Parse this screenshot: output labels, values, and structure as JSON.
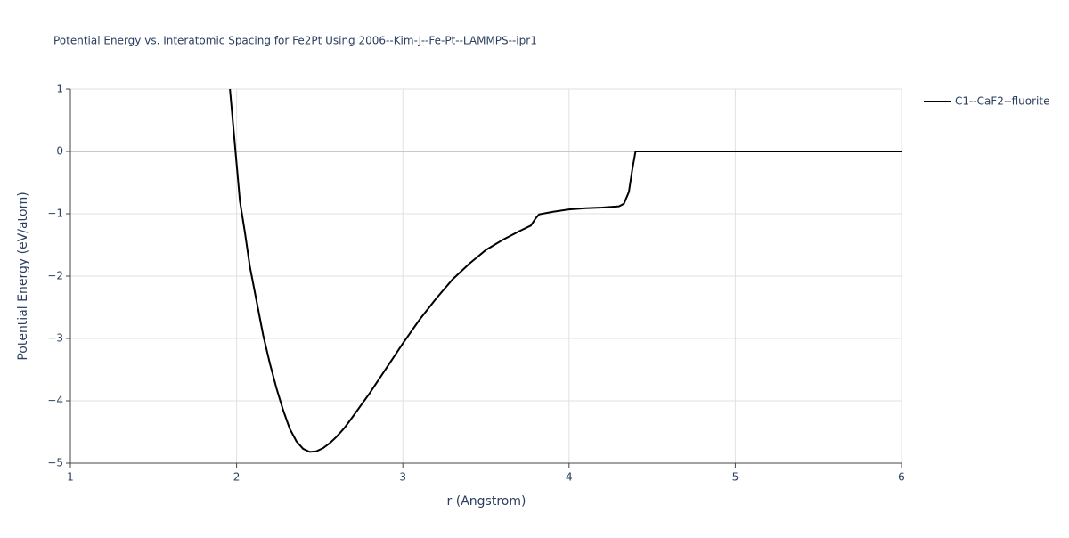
{
  "chart_data": {
    "type": "line",
    "title": "Potential Energy vs. Interatomic Spacing for Fe2Pt Using 2006--Kim-J--Fe-Pt--LAMMPS--ipr1",
    "xlabel": "r (Angstrom)",
    "ylabel": "Potential Energy (eV/atom)",
    "xlim": [
      1,
      6
    ],
    "ylim": [
      -5,
      1
    ],
    "xticks": [
      1,
      2,
      3,
      4,
      5,
      6
    ],
    "yticks": [
      {
        "value": -5,
        "label": "−5"
      },
      {
        "value": -4,
        "label": "−4"
      },
      {
        "value": -3,
        "label": "−3"
      },
      {
        "value": -2,
        "label": "−2"
      },
      {
        "value": -1,
        "label": "−1"
      },
      0,
      1
    ],
    "grid": true,
    "legend": "right",
    "series": [
      {
        "name": "C1--CaF2--fluorite",
        "color": "#000000",
        "x": [
          1.96,
          1.98,
          2.0,
          2.02,
          2.05,
          2.08,
          2.12,
          2.16,
          2.2,
          2.24,
          2.28,
          2.32,
          2.36,
          2.4,
          2.44,
          2.48,
          2.52,
          2.56,
          2.6,
          2.65,
          2.7,
          2.8,
          2.9,
          3.0,
          3.1,
          3.2,
          3.3,
          3.4,
          3.5,
          3.6,
          3.7,
          3.77,
          3.8,
          3.82,
          3.9,
          4.0,
          4.1,
          4.2,
          4.3,
          4.33,
          4.36,
          4.38,
          4.4,
          4.5,
          5.0,
          5.5,
          6.0
        ],
        "values": [
          1.0,
          0.4,
          -0.2,
          -0.8,
          -1.3,
          -1.85,
          -2.4,
          -2.95,
          -3.4,
          -3.8,
          -4.15,
          -4.45,
          -4.65,
          -4.77,
          -4.82,
          -4.81,
          -4.76,
          -4.68,
          -4.58,
          -4.43,
          -4.25,
          -3.88,
          -3.48,
          -3.08,
          -2.7,
          -2.36,
          -2.05,
          -1.8,
          -1.58,
          -1.42,
          -1.28,
          -1.19,
          -1.07,
          -1.01,
          -0.97,
          -0.93,
          -0.91,
          -0.9,
          -0.88,
          -0.84,
          -0.65,
          -0.3,
          0.0,
          0.0,
          0.0,
          0.0,
          0.0
        ]
      }
    ]
  }
}
